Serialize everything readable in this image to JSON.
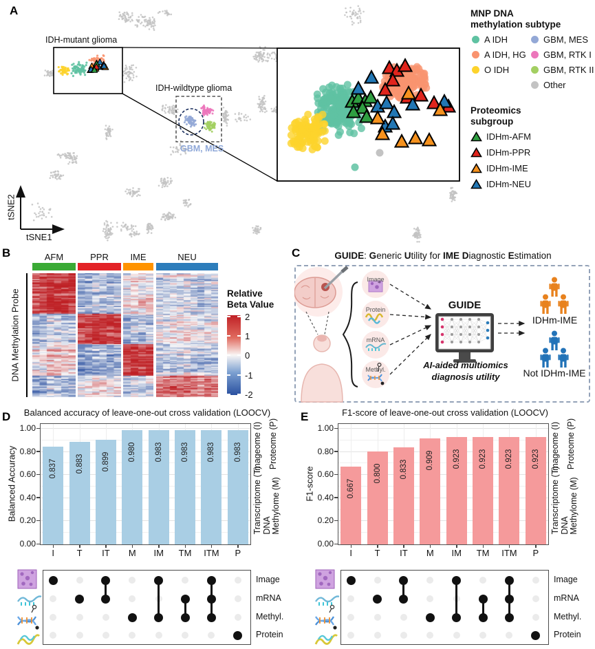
{
  "colors": {
    "teal_a_idh": "#5fc2a2",
    "salmon_a_idh_hg": "#f9936f",
    "yellow_o_idh": "#fdd32c",
    "periwinkle_gbm_mes": "#93a8d6",
    "pink_gbm_rtk1": "#ec77bb",
    "green_gbm_rtk2": "#a3cf62",
    "gray_other": "#c3c3c3",
    "tri_afm_green": "#2f9e41",
    "tri_ppr_red": "#e0241c",
    "tri_ime_orange": "#f6921e",
    "tri_neu_blue": "#2277b4",
    "header_afm": "#3aaa35",
    "header_ppr": "#e32226",
    "header_ime": "#ff9300",
    "header_neu": "#2d7dbb",
    "bar_d": "#a9cee4",
    "bar_e": "#f59a9b",
    "people_ime_orange": "#e8821e",
    "people_not_ime_blue": "#2273b8",
    "heat_red": "#bf2126",
    "heat_blue": "#2a50a0",
    "gbm_mes_label": "#8fa8d8"
  },
  "panelA": {
    "label": "A",
    "annotations": {
      "mutant": "IDH-mutant glioma",
      "wildtype": "IDH-wildtype glioma",
      "gbm_mes": "GBM, MES"
    },
    "axes": {
      "x": "tSNE1",
      "y": "tSNE2"
    },
    "legend_methylation": {
      "title_line1": "MNP DNA",
      "title_line2": "methylation subtype",
      "col1": [
        {
          "label": "A IDH",
          "color": "#5fc2a2"
        },
        {
          "label": "A IDH, HG",
          "color": "#f9936f"
        },
        {
          "label": "O IDH",
          "color": "#fdd32c"
        }
      ],
      "col2": [
        {
          "label": "GBM, MES",
          "color": "#93a8d6"
        },
        {
          "label": "GBM, RTK I",
          "color": "#ec77bb"
        },
        {
          "label": "GBM, RTK II",
          "color": "#a3cf62"
        },
        {
          "label": "Other",
          "color": "#c3c3c3"
        }
      ]
    },
    "legend_proteomics": {
      "title_line1": "Proteomics",
      "title_line2": "subgroup",
      "items": [
        {
          "label": "IDHm-AFM",
          "color": "#2f9e41"
        },
        {
          "label": "IDHm-PPR",
          "color": "#e0241c"
        },
        {
          "label": "IDHm-IME",
          "color": "#f6921e"
        },
        {
          "label": "IDHm-NEU",
          "color": "#2277b4"
        }
      ]
    }
  },
  "panelB": {
    "label": "B",
    "groups": [
      {
        "name": "AFM",
        "color": "#3aaa35"
      },
      {
        "name": "PPR",
        "color": "#e32226"
      },
      {
        "name": "IME",
        "color": "#ff9300"
      },
      {
        "name": "NEU",
        "color": "#2d7dbb"
      }
    ],
    "y_axis_label": "DNA Methylation Probe",
    "colorbar": {
      "title_line1": "Relative",
      "title_line2": "Beta Value",
      "ticks": [
        "2",
        "1",
        "0",
        "-1",
        "-2"
      ]
    }
  },
  "panelC": {
    "label": "C",
    "title_parts": [
      {
        "text": "GUIDE",
        "bold": true
      },
      {
        "text": ": ",
        "bold": false
      },
      {
        "text": "G",
        "bold": true
      },
      {
        "text": "eneric ",
        "bold": false
      },
      {
        "text": "U",
        "bold": true
      },
      {
        "text": "tility for ",
        "bold": false
      },
      {
        "text": "IME",
        "bold": true
      },
      {
        "text": " ",
        "bold": false
      },
      {
        "text": "D",
        "bold": true
      },
      {
        "text": "iagnostic ",
        "bold": false
      },
      {
        "text": "E",
        "bold": true
      },
      {
        "text": "stimation",
        "bold": false
      }
    ],
    "inputs": [
      "Image",
      "Protein",
      "mRNA",
      "Methyl."
    ],
    "model": "GUIDE",
    "caption_line1": "AI-aided multiomics",
    "caption_line2": "diagnosis utility",
    "outputs": [
      {
        "label": "IDHm-IME",
        "color": "#e8821e"
      },
      {
        "label": "Not IDHm-IME",
        "color": "#2273b8"
      }
    ]
  },
  "panelD": {
    "label": "D"
  },
  "panelE": {
    "label": "E"
  },
  "charts_side_labels": [
    "Imageome (I)",
    "Proteome (P)",
    "Transcriptome (T)",
    "DNA\nMethylome (M)"
  ],
  "upset": {
    "rows": [
      "Image",
      "mRNA",
      "Methyl.",
      "Protein"
    ],
    "combos": [
      {
        "label": "I",
        "sets": [
          0
        ]
      },
      {
        "label": "T",
        "sets": [
          1
        ]
      },
      {
        "label": "IT",
        "sets": [
          0,
          1
        ]
      },
      {
        "label": "M",
        "sets": [
          2
        ]
      },
      {
        "label": "IM",
        "sets": [
          0,
          2
        ]
      },
      {
        "label": "TM",
        "sets": [
          1,
          2
        ]
      },
      {
        "label": "ITM",
        "sets": [
          0,
          1,
          2
        ]
      },
      {
        "label": "P",
        "sets": [
          3
        ]
      }
    ]
  },
  "chart_data": [
    {
      "type": "bar",
      "panel": "D",
      "title": "Balanced accuracy of leave-one-out cross validation (LOOCV)",
      "ylabel": "Balanced Accuracy",
      "xlabel": "",
      "categories": [
        "I",
        "T",
        "IT",
        "M",
        "IM",
        "TM",
        "ITM",
        "P"
      ],
      "values": [
        0.837,
        0.883,
        0.899,
        0.98,
        0.983,
        0.983,
        0.983,
        0.983
      ],
      "value_labels": [
        "0.837",
        "0.883",
        "0.899",
        "0.980",
        "0.983",
        "0.983",
        "0.983",
        "0.983"
      ],
      "ylim": [
        0,
        1
      ],
      "yticks": [
        "1.00",
        "0.80",
        "0.60",
        "0.40",
        "0.20",
        "0.00"
      ],
      "bar_color": "#a9cee4",
      "grid": true
    },
    {
      "type": "bar",
      "panel": "E",
      "title": "F1-score of leave-one-out cross validation (LOOCV)",
      "ylabel": "F1-score",
      "xlabel": "",
      "categories": [
        "I",
        "T",
        "IT",
        "M",
        "IM",
        "TM",
        "ITM",
        "P"
      ],
      "values": [
        0.667,
        0.8,
        0.833,
        0.909,
        0.923,
        0.923,
        0.923,
        0.923
      ],
      "value_labels": [
        "0.667",
        "0.800",
        "0.833",
        "0.909",
        "0.923",
        "0.923",
        "0.923",
        "0.923"
      ],
      "ylim": [
        0,
        1
      ],
      "yticks": [
        "1.00",
        "0.80",
        "0.60",
        "0.40",
        "0.20",
        "0.00"
      ],
      "bar_color": "#f59a9b",
      "grid": true
    },
    {
      "type": "heatmap",
      "panel": "B",
      "groups": [
        "AFM",
        "PPR",
        "IME",
        "NEU"
      ],
      "ylabel": "DNA Methylation Probe",
      "colorbar_title": "Relative Beta Value",
      "value_range": [
        -2,
        2
      ],
      "colorbar_ticks": [
        2,
        1,
        0,
        -1,
        -2
      ],
      "description": "Probe rows form four blocks, each hypermethylated (high relative beta value, red) in one subgroup: block 1 high in AFM, block 2 high in PPR, block 3 high in IME, block 4 high in NEU; remaining cells mixed blue/red."
    },
    {
      "type": "scatter",
      "panel": "A",
      "axes": [
        "tSNE1",
        "tSNE2"
      ],
      "description": "tSNE of MNP DNA methylation profiles: gray reference clusters; boxed IDH-mutant glioma cluster (A IDH teal, A IDH HG salmon, O IDH yellow) magnified in inset with proteomics-subgroup triangles (AFM green, PPR red, IME orange, NEU blue); dashed box around IDH-wildtype glioma (GBM MES periwinkle outlined, GBM RTK I pink, GBM RTK II green)."
    }
  ]
}
